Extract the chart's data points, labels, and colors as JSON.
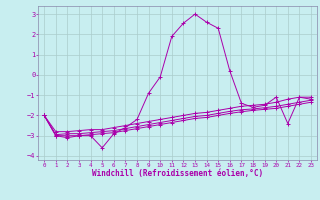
{
  "xlabel": "Windchill (Refroidissement éolien,°C)",
  "background_color": "#c8eef0",
  "grid_color": "#aacccc",
  "line_color": "#aa00aa",
  "spine_color": "#8888aa",
  "x": [
    0,
    1,
    2,
    3,
    4,
    5,
    6,
    7,
    8,
    9,
    10,
    11,
    12,
    13,
    14,
    15,
    16,
    17,
    18,
    19,
    20,
    21,
    22,
    23
  ],
  "y_main": [
    -2.0,
    -3.0,
    -3.1,
    -3.0,
    -3.0,
    -3.6,
    -2.9,
    -2.6,
    -2.2,
    -0.9,
    -0.1,
    1.9,
    2.55,
    3.0,
    2.6,
    2.3,
    0.2,
    -1.4,
    -1.6,
    -1.5,
    -1.1,
    -2.4,
    -1.1,
    -1.2
  ],
  "y_line2": [
    -2.0,
    -2.8,
    -2.8,
    -2.75,
    -2.7,
    -2.7,
    -2.6,
    -2.5,
    -2.4,
    -2.3,
    -2.2,
    -2.1,
    -2.0,
    -1.9,
    -1.85,
    -1.75,
    -1.65,
    -1.55,
    -1.5,
    -1.45,
    -1.35,
    -1.2,
    -1.1,
    -1.1
  ],
  "y_line3": [
    -2.0,
    -2.95,
    -2.9,
    -2.9,
    -2.85,
    -2.8,
    -2.75,
    -2.65,
    -2.55,
    -2.45,
    -2.35,
    -2.25,
    -2.15,
    -2.05,
    -2.0,
    -1.9,
    -1.8,
    -1.72,
    -1.68,
    -1.62,
    -1.55,
    -1.45,
    -1.35,
    -1.25
  ],
  "y_line4": [
    -2.0,
    -3.0,
    -3.0,
    -3.0,
    -2.95,
    -2.9,
    -2.85,
    -2.75,
    -2.65,
    -2.55,
    -2.45,
    -2.35,
    -2.25,
    -2.15,
    -2.1,
    -2.0,
    -1.9,
    -1.82,
    -1.75,
    -1.7,
    -1.65,
    -1.55,
    -1.45,
    -1.35
  ],
  "ylim": [
    -4.2,
    3.4
  ],
  "yticks": [
    -4,
    -3,
    -2,
    -1,
    0,
    1,
    2,
    3
  ],
  "xlim": [
    -0.5,
    23.5
  ],
  "xticks": [
    0,
    1,
    2,
    3,
    4,
    5,
    6,
    7,
    8,
    9,
    10,
    11,
    12,
    13,
    14,
    15,
    16,
    17,
    18,
    19,
    20,
    21,
    22,
    23
  ]
}
